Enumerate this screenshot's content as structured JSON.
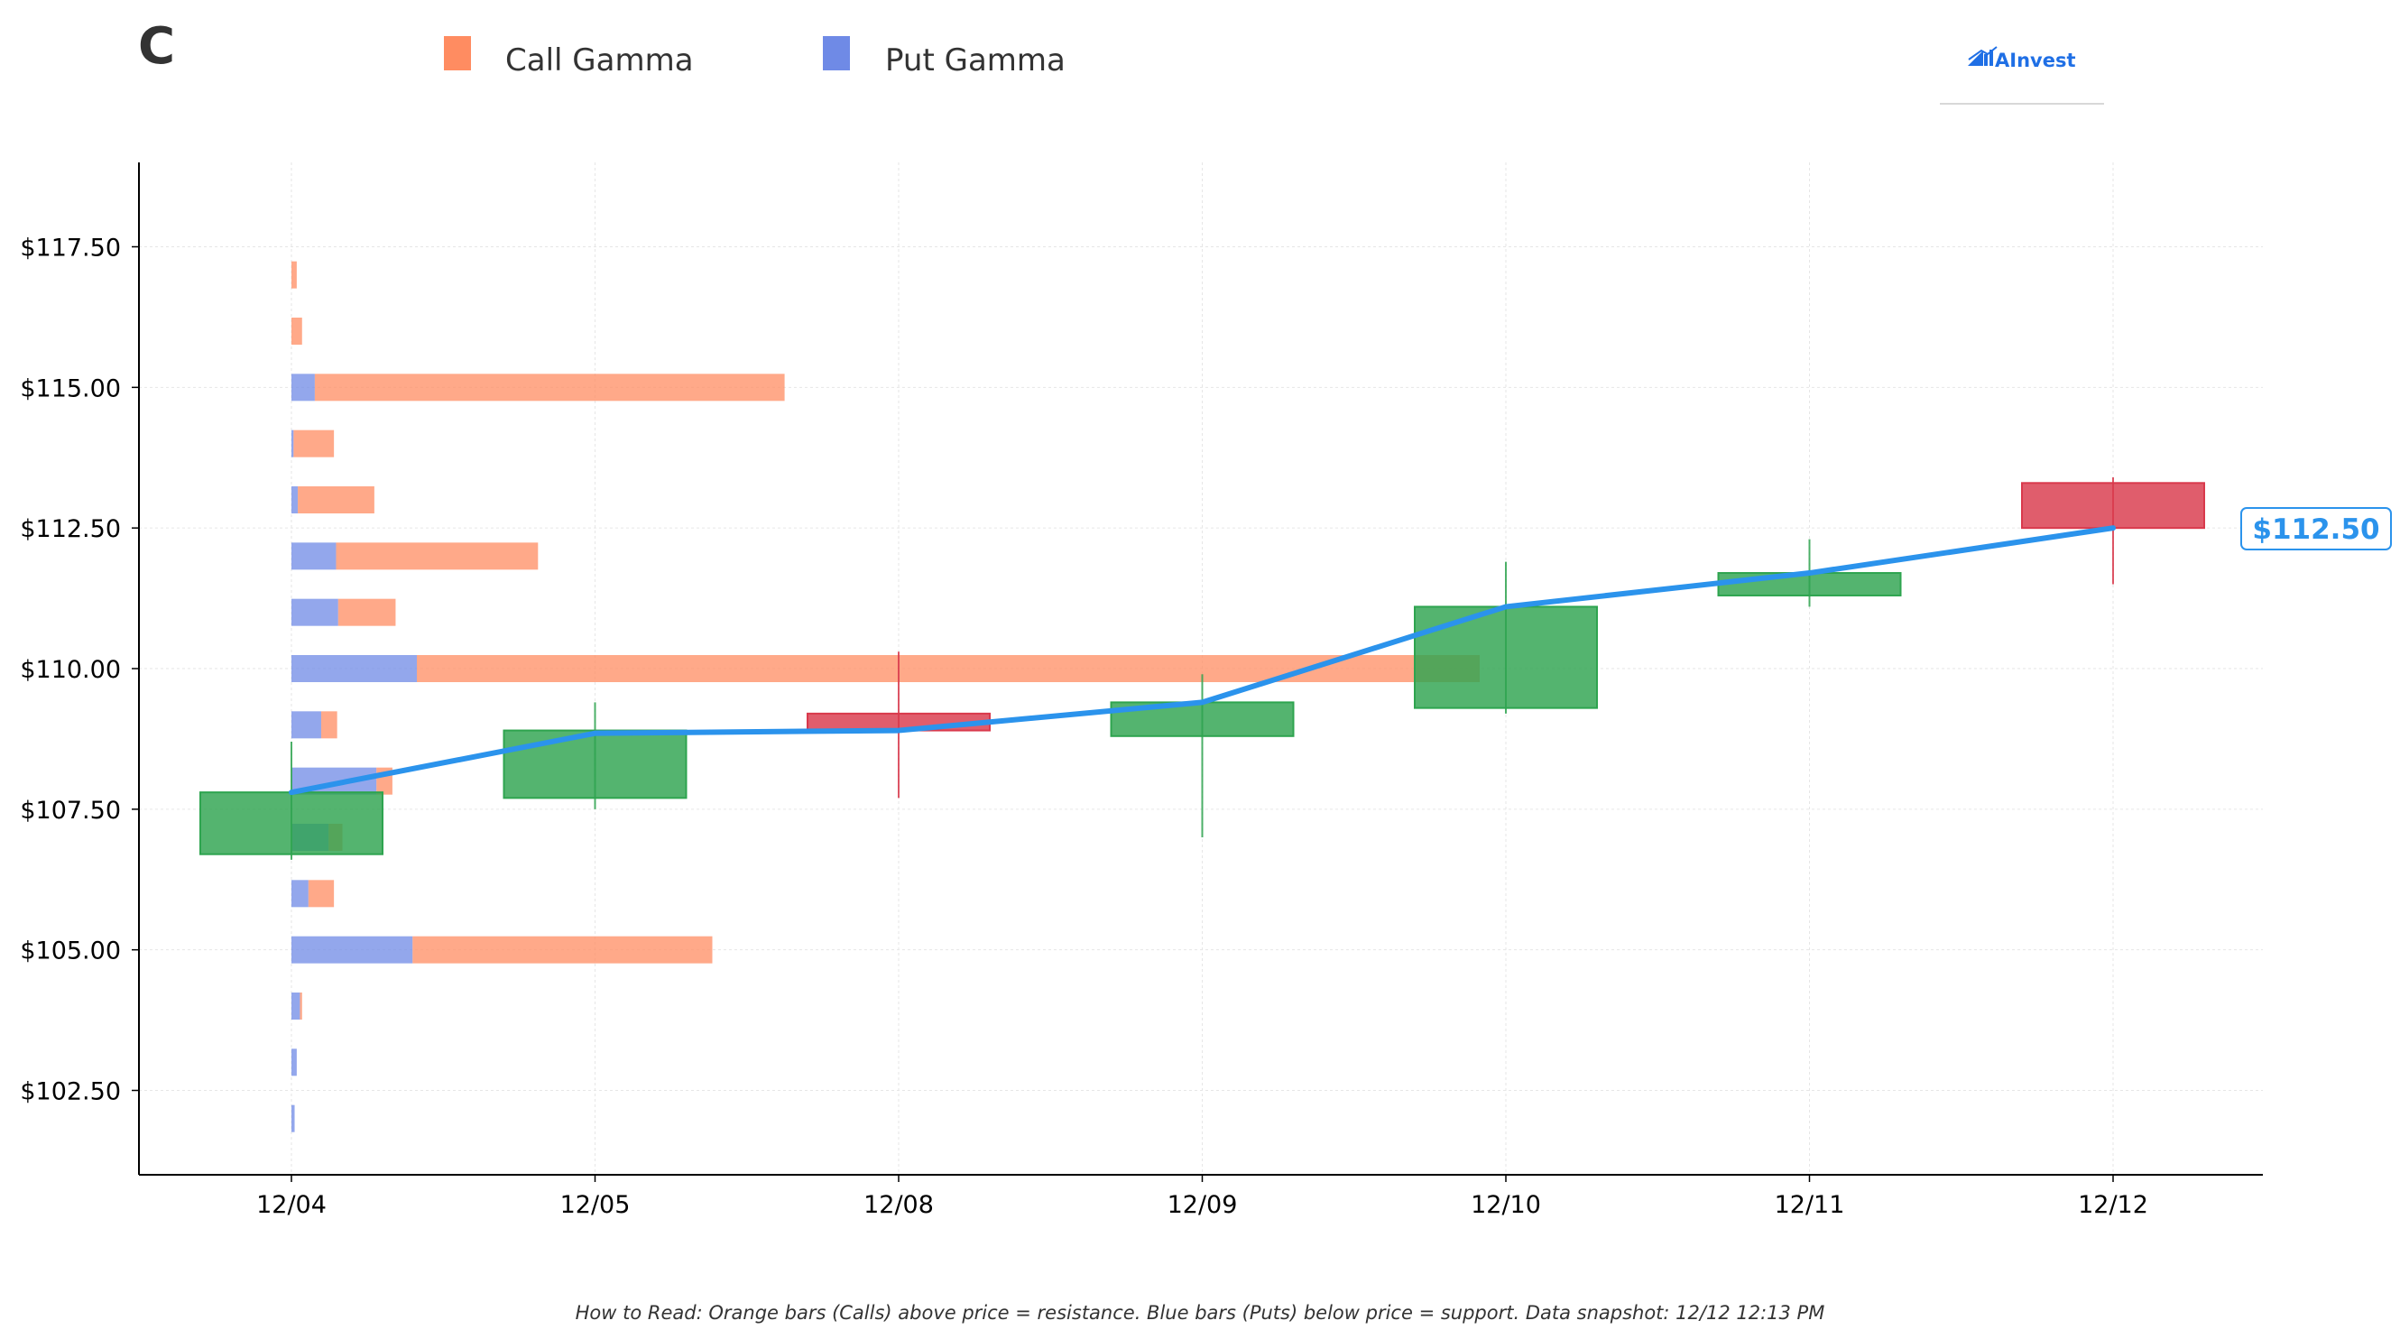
{
  "header": {
    "ticker": "C",
    "brand": "AInvest"
  },
  "footnote": "How to Read: Orange bars (Calls) above price = resistance. Blue bars (Puts) below price = support. Data snapshot: 12/12 12:13 PM",
  "chart_data": {
    "type": "candlestick",
    "title": "",
    "xlabel": "",
    "ylabel": "",
    "legend_position": "top",
    "grid": true,
    "colors": {
      "call": "#ff8c61",
      "put": "#6f8ae6",
      "up": "#2ea44f",
      "down": "#d9394c",
      "line": "#2b93ec"
    },
    "legend": [
      {
        "key": "call",
        "label": "Call Gamma"
      },
      {
        "key": "put",
        "label": "Put Gamma"
      }
    ],
    "x_categories": [
      "12/04",
      "12/05",
      "12/08",
      "12/09",
      "12/10",
      "12/11",
      "12/12"
    ],
    "ylim": [
      101.0,
      119.0
    ],
    "y_ticks": [
      {
        "value": 102.5,
        "label": "$102.50"
      },
      {
        "value": 105.0,
        "label": "$105.00"
      },
      {
        "value": 107.5,
        "label": "$107.50"
      },
      {
        "value": 110.0,
        "label": "$110.00"
      },
      {
        "value": 112.5,
        "label": "$112.50"
      },
      {
        "value": 115.0,
        "label": "$115.00"
      },
      {
        "value": 117.5,
        "label": "$117.50"
      }
    ],
    "candles": [
      {
        "date": "12/04",
        "open": 106.7,
        "high": 108.7,
        "low": 106.6,
        "close": 107.8
      },
      {
        "date": "12/05",
        "open": 107.7,
        "high": 109.4,
        "low": 107.5,
        "close": 108.9
      },
      {
        "date": "12/08",
        "open": 109.2,
        "high": 110.3,
        "low": 107.7,
        "close": 108.9
      },
      {
        "date": "12/09",
        "open": 108.8,
        "high": 109.9,
        "low": 107.0,
        "close": 109.4
      },
      {
        "date": "12/10",
        "open": 109.3,
        "high": 111.9,
        "low": 109.2,
        "close": 111.1
      },
      {
        "date": "12/11",
        "open": 111.3,
        "high": 112.3,
        "low": 111.1,
        "close": 111.7
      },
      {
        "date": "12/12",
        "open": 113.3,
        "high": 113.4,
        "low": 111.5,
        "close": 112.5
      }
    ],
    "price_line": {
      "x": [
        "12/04",
        "12/05",
        "12/08",
        "12/09",
        "12/10",
        "12/11",
        "12/12"
      ],
      "y": [
        107.8,
        108.85,
        108.9,
        109.4,
        111.1,
        111.7,
        112.5
      ]
    },
    "last_price_label": "$112.50",
    "gamma_x_unit_note": "",
    "gamma_x_max": 7.0,
    "gamma_profile": [
      {
        "strike": 117.0,
        "put": 0.0,
        "call": 0.05
      },
      {
        "strike": 116.0,
        "put": 0.0,
        "call": 0.1
      },
      {
        "strike": 115.0,
        "put": 0.22,
        "call": 4.42
      },
      {
        "strike": 114.0,
        "put": 0.02,
        "call": 0.38
      },
      {
        "strike": 113.0,
        "put": 0.06,
        "call": 0.72
      },
      {
        "strike": 112.0,
        "put": 0.42,
        "call": 1.9
      },
      {
        "strike": 111.0,
        "put": 0.44,
        "call": 0.54
      },
      {
        "strike": 110.0,
        "put": 1.18,
        "call": 10.0
      },
      {
        "strike": 109.0,
        "put": 0.28,
        "call": 0.15
      },
      {
        "strike": 108.0,
        "put": 0.8,
        "call": 0.15
      },
      {
        "strike": 107.0,
        "put": 0.35,
        "call": 0.13
      },
      {
        "strike": 106.0,
        "put": 0.16,
        "call": 0.24
      },
      {
        "strike": 105.0,
        "put": 1.14,
        "call": 2.82
      },
      {
        "strike": 104.0,
        "put": 0.08,
        "call": 0.02
      },
      {
        "strike": 103.0,
        "put": 0.05,
        "call": 0.0
      },
      {
        "strike": 102.0,
        "put": 0.03,
        "call": 0.0
      }
    ]
  }
}
